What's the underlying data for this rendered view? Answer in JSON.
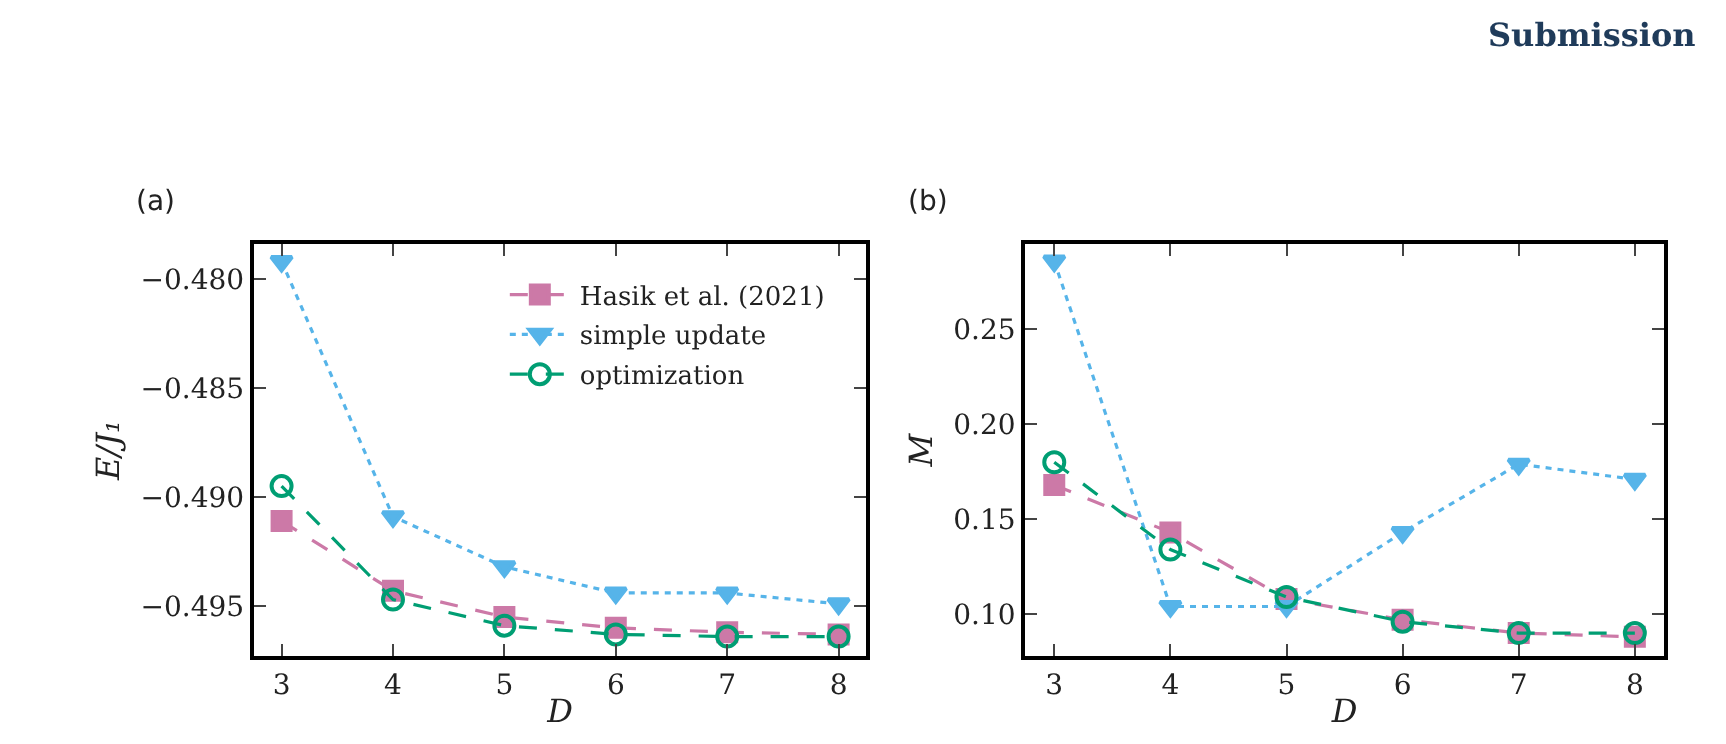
{
  "chart_data": [
    {
      "type": "line",
      "title": "(a)",
      "xlabel": "D",
      "ylabel": "E/J₁",
      "x": [
        3,
        4,
        5,
        6,
        7,
        8
      ],
      "xlim": [
        2.75,
        8.25
      ],
      "xticks": [
        3,
        4,
        5,
        6,
        7,
        8
      ],
      "ylim": [
        -0.4973,
        -0.4784
      ],
      "yticks": [
        {
          "value": -0.495,
          "label": "−0.495"
        },
        {
          "value": -0.49,
          "label": "−0.490"
        },
        {
          "value": -0.485,
          "label": "−0.485"
        },
        {
          "value": -0.48,
          "label": "−0.480"
        }
      ],
      "legend": "top right",
      "series": [
        {
          "name": "Hasik et al. (2021)",
          "color": "#cc79a7",
          "marker": "square",
          "line_style": "dashed",
          "values": [
            -0.4911,
            -0.4943,
            -0.4955,
            -0.496,
            -0.4962,
            -0.4963
          ]
        },
        {
          "name": "simple update",
          "color": "#56b4e9",
          "marker": "triangle",
          "line_style": "dotted",
          "values": [
            -0.4792,
            -0.4909,
            -0.4932,
            -0.4944,
            -0.4944,
            -0.4949
          ]
        },
        {
          "name": "optimization",
          "color": "#009e73",
          "marker": "circle",
          "line_style": "dashed",
          "values": [
            -0.4895,
            -0.4947,
            -0.4959,
            -0.4963,
            -0.4964,
            -0.4964
          ]
        }
      ]
    },
    {
      "type": "line",
      "title": "(b)",
      "xlabel": "D",
      "ylabel": "M",
      "x": [
        3,
        4,
        5,
        6,
        7,
        8
      ],
      "xlim": [
        2.75,
        8.25
      ],
      "xticks": [
        3,
        4,
        5,
        6,
        7,
        8
      ],
      "ylim": [
        0.0778,
        0.295
      ],
      "yticks": [
        {
          "value": 0.1,
          "label": "0.10"
        },
        0.15,
        {
          "value": 0.2,
          "label": "0.20"
        },
        0.25
      ],
      "legend": false,
      "annotations": [
        "Submission"
      ],
      "series": [
        {
          "color": "#cc79a7",
          "marker": "square",
          "line_style": "dashed",
          "values": [
            0.168,
            0.143,
            0.108,
            0.097,
            0.09,
            0.088
          ]
        },
        {
          "color": "#56b4e9",
          "marker": "triangle",
          "line_style": "dotted",
          "values": [
            0.286,
            0.104,
            0.104,
            0.143,
            0.179,
            0.171
          ]
        },
        {
          "color": "#009e73",
          "marker": "circle",
          "line_style": "dashed",
          "values": [
            0.18,
            0.134,
            0.109,
            0.096,
            0.09,
            0.09
          ]
        }
      ]
    }
  ]
}
